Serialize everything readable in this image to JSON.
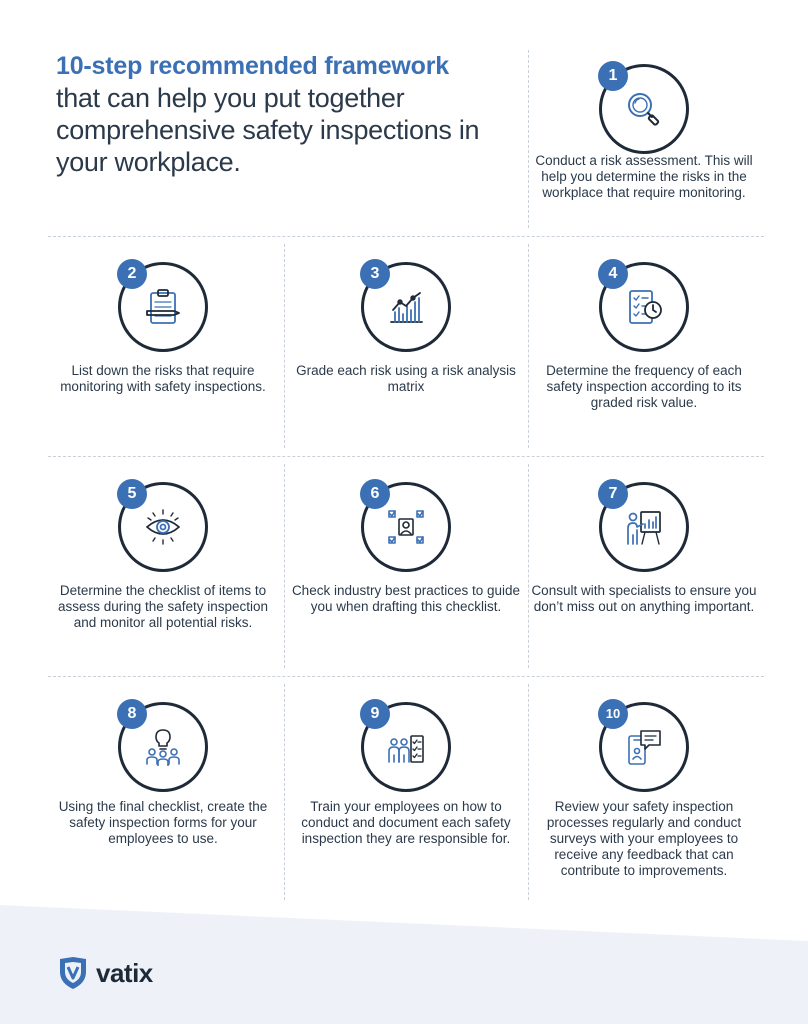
{
  "header": {
    "title_accent": "10-step recommended framework",
    "title_rest": "that can help you put together comprehensive safety inspections in your workplace."
  },
  "colors": {
    "accent": "#3b70b5",
    "dark": "#1f2a38",
    "text": "#2b3a4a",
    "footer": "#eef2f8"
  },
  "steps": [
    {
      "number": "1",
      "icon": "magnifier-icon",
      "text": "Conduct a risk assessment. This will help you determine the risks in the workplace that require monitoring."
    },
    {
      "number": "2",
      "icon": "clipboard-pencil-icon",
      "text": "List down the risks that require monitoring with safety inspections."
    },
    {
      "number": "3",
      "icon": "chart-analysis-icon",
      "text": "Grade each risk using a risk analysis matrix"
    },
    {
      "number": "4",
      "icon": "checklist-clock-icon",
      "text": "Determine the frequency of each safety inspection according to its graded risk value."
    },
    {
      "number": "5",
      "icon": "eye-icon",
      "text": "Determine the checklist of items to assess during the safety inspection and monitor all potential risks."
    },
    {
      "number": "6",
      "icon": "person-checkboxes-icon",
      "text": "Check industry best practices to guide you when drafting this checklist."
    },
    {
      "number": "7",
      "icon": "presenter-board-icon",
      "text": "Consult with specialists to ensure you don’t miss out on anything important."
    },
    {
      "number": "8",
      "icon": "team-lightbulb-icon",
      "text": "Using the final checklist, create the safety inspection forms for your employees to use."
    },
    {
      "number": "9",
      "icon": "training-checklist-icon",
      "text": "Train your employees on how to conduct and document each safety inspection they are responsible for."
    },
    {
      "number": "10",
      "icon": "phone-chat-icon",
      "text": "Review your safety inspection processes regularly and conduct surveys with your employees to receive any feedback that can contribute to improvements."
    }
  ],
  "footer": {
    "brand": "vatix"
  }
}
